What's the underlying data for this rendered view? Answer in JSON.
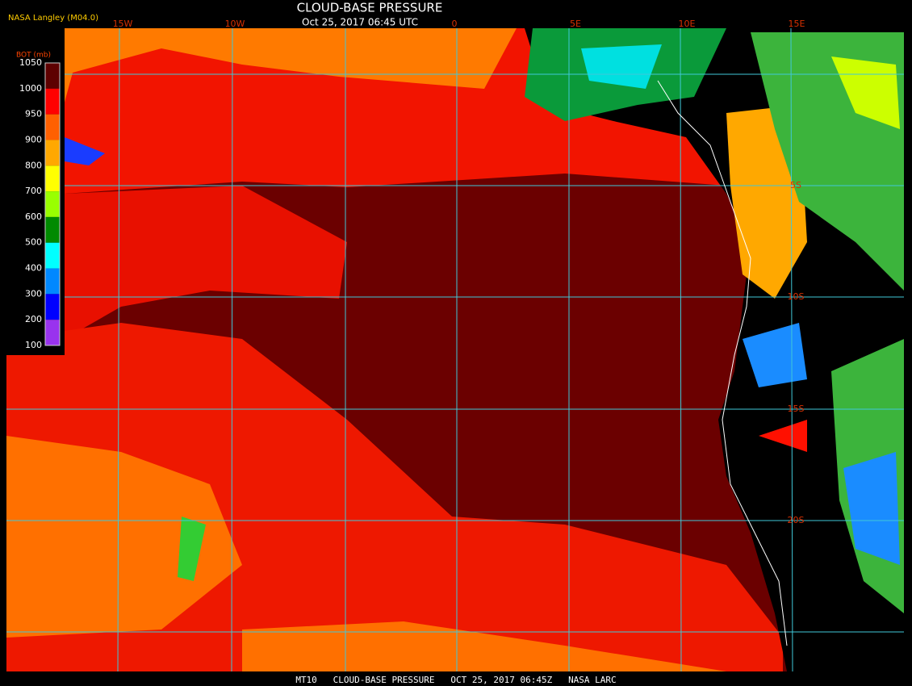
{
  "header": {
    "title": "CLOUD-BASE PRESSURE",
    "subtitle": "Oct 25, 2017 06:45 UTC",
    "source": "NASA Langley (M04.0)"
  },
  "legend": {
    "title": "BOT (mb)",
    "labels": [
      "1050",
      "1000",
      "950",
      "900",
      "800",
      "700",
      "600",
      "500",
      "400",
      "300",
      "200",
      "100"
    ],
    "colors": [
      "#5e0000",
      "#ff0000",
      "#ff6000",
      "#ffa800",
      "#ffff00",
      "#99ff00",
      "#008a00",
      "#00ffff",
      "#0088ff",
      "#0000ff",
      "#9933ee"
    ]
  },
  "grid_labels": {
    "longitude": [
      "15W",
      "10W",
      "0",
      "5E",
      "10E",
      "15E"
    ],
    "latitude": [
      "5S",
      "10S",
      "15S",
      "20S"
    ]
  },
  "footer": "MT10   CLOUD-BASE PRESSURE   OCT 25, 2017 06:45Z   NASA LARC"
}
